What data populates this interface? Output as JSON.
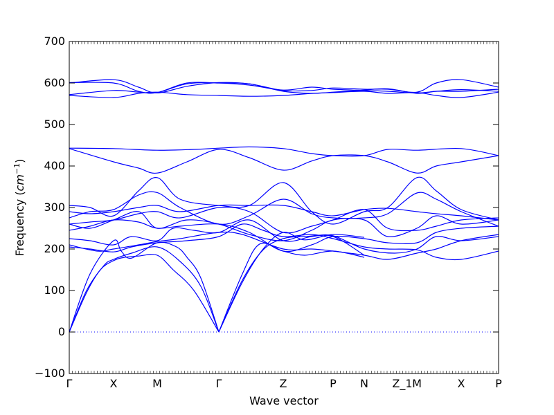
{
  "chart_data": {
    "type": "line",
    "xlabel": "Wave vector",
    "ylabel": "Frequency (cm⁻¹)",
    "ylabel_prefix": "Frequency (",
    "ylabel_unit": "cm",
    "ylabel_exp": "−1",
    "ylabel_suffix": ")",
    "ylim": [
      -100,
      700
    ],
    "yticks": [
      -100,
      0,
      100,
      200,
      300,
      400,
      500,
      600,
      700
    ],
    "zero_line": {
      "value": 0,
      "style": "dotted",
      "color": "#0000ff"
    },
    "line_color": "#0000ff",
    "grid": false,
    "high_symmetry_points": [
      {
        "label": "Γ",
        "x": 0.0
      },
      {
        "label": "X",
        "x": 0.64
      },
      {
        "label": "M",
        "x": 1.27
      },
      {
        "label": "Γ",
        "x": 2.16
      },
      {
        "label": "Z",
        "x": 3.09
      },
      {
        "label": "P",
        "x": 3.81
      },
      {
        "label": "N",
        "x": 4.26
      },
      {
        "label": "Z_1",
        "x": 4.81
      },
      {
        "label": "M",
        "x": 5.02
      },
      {
        "label": "X",
        "x": 5.66
      },
      {
        "label": "P",
        "x": 6.2
      }
    ],
    "xlim": [
      0,
      6.2
    ],
    "series": [
      {
        "values": [
          [
            0,
            0
          ],
          [
            0.25,
            95
          ],
          [
            0.45,
            150
          ],
          [
            0.64,
            172
          ],
          [
            0.8,
            180
          ],
          [
            1.0,
            183
          ],
          [
            1.27,
            185
          ],
          [
            1.5,
            150
          ],
          [
            1.8,
            100
          ],
          [
            2.16,
            0
          ]
        ]
      },
      {
        "values": [
          [
            0,
            0
          ],
          [
            0.25,
            100
          ],
          [
            0.5,
            160
          ],
          [
            0.64,
            175
          ],
          [
            0.9,
            190
          ],
          [
            1.27,
            205
          ],
          [
            1.6,
            170
          ],
          [
            1.9,
            110
          ],
          [
            2.16,
            0
          ]
        ]
      },
      {
        "values": [
          [
            0,
            0
          ],
          [
            0.3,
            140
          ],
          [
            0.64,
            220
          ],
          [
            0.75,
            195
          ],
          [
            0.9,
            178
          ],
          [
            1.27,
            215
          ],
          [
            1.55,
            205
          ],
          [
            1.7,
            180
          ],
          [
            1.9,
            130
          ],
          [
            2.16,
            0
          ]
        ]
      },
      {
        "values": [
          [
            2.16,
            0
          ],
          [
            2.5,
            120
          ],
          [
            2.8,
            200
          ],
          [
            3.09,
            240
          ],
          [
            3.4,
            222
          ],
          [
            3.81,
            235
          ],
          [
            4.26,
            228
          ]
        ]
      },
      {
        "values": [
          [
            2.16,
            0
          ],
          [
            2.5,
            125
          ],
          [
            2.8,
            198
          ],
          [
            3.09,
            225
          ],
          [
            3.4,
            230
          ],
          [
            3.81,
            230
          ],
          [
            4.26,
            185
          ]
        ]
      },
      {
        "values": [
          [
            2.16,
            0
          ],
          [
            2.5,
            140
          ],
          [
            2.75,
            212
          ],
          [
            3.09,
            195
          ],
          [
            3.4,
            185
          ],
          [
            3.81,
            195
          ],
          [
            4.26,
            180
          ]
        ]
      },
      {
        "values": [
          [
            0,
            205
          ],
          [
            0.3,
            200
          ],
          [
            0.64,
            193
          ],
          [
            0.9,
            205
          ],
          [
            1.27,
            215
          ],
          [
            1.7,
            220
          ],
          [
            2.16,
            230
          ],
          [
            2.5,
            260
          ],
          [
            2.8,
            245
          ],
          [
            3.09,
            230
          ],
          [
            3.5,
            235
          ],
          [
            3.81,
            225
          ],
          [
            4.26,
            205
          ],
          [
            4.6,
            200
          ],
          [
            5.02,
            198
          ],
          [
            5.3,
            180
          ],
          [
            5.66,
            175
          ],
          [
            6.2,
            195
          ]
        ]
      },
      {
        "values": [
          [
            0,
            210
          ],
          [
            0.4,
            195
          ],
          [
            0.64,
            200
          ],
          [
            1.0,
            210
          ],
          [
            1.27,
            218
          ],
          [
            1.6,
            225
          ],
          [
            2.16,
            240
          ],
          [
            2.5,
            235
          ],
          [
            3.09,
            200
          ],
          [
            3.5,
            200
          ],
          [
            3.81,
            195
          ],
          [
            4.26,
            185
          ],
          [
            4.6,
            175
          ],
          [
            5.02,
            190
          ],
          [
            5.3,
            200
          ],
          [
            5.66,
            220
          ],
          [
            6.2,
            235
          ]
        ]
      },
      {
        "values": [
          [
            0,
            225
          ],
          [
            0.3,
            220
          ],
          [
            0.64,
            210
          ],
          [
            0.9,
            230
          ],
          [
            1.27,
            220
          ],
          [
            1.5,
            250
          ],
          [
            1.8,
            245
          ],
          [
            2.16,
            240
          ],
          [
            2.6,
            270
          ],
          [
            3.09,
            220
          ],
          [
            3.5,
            230
          ],
          [
            3.81,
            232
          ],
          [
            4.26,
            200
          ],
          [
            4.7,
            190
          ],
          [
            5.02,
            200
          ],
          [
            5.3,
            230
          ],
          [
            5.66,
            220
          ],
          [
            6.2,
            230
          ]
        ]
      },
      {
        "values": [
          [
            0,
            245
          ],
          [
            0.3,
            255
          ],
          [
            0.64,
            270
          ],
          [
            1.0,
            265
          ],
          [
            1.27,
            250
          ],
          [
            1.6,
            255
          ],
          [
            2.16,
            260
          ],
          [
            2.6,
            240
          ],
          [
            3.09,
            195
          ],
          [
            3.5,
            210
          ],
          [
            3.81,
            230
          ],
          [
            4.26,
            225
          ],
          [
            4.6,
            215
          ],
          [
            5.02,
            215
          ],
          [
            5.3,
            240
          ],
          [
            5.66,
            250
          ],
          [
            6.2,
            255
          ]
        ]
      },
      {
        "values": [
          [
            0,
            260
          ],
          [
            0.3,
            250
          ],
          [
            0.64,
            270
          ],
          [
            1.0,
            290
          ],
          [
            1.27,
            250
          ],
          [
            1.7,
            270
          ],
          [
            2.16,
            260
          ],
          [
            2.6,
            235
          ],
          [
            3.09,
            220
          ],
          [
            3.5,
            245
          ],
          [
            3.81,
            270
          ],
          [
            4.26,
            270
          ],
          [
            4.6,
            230
          ],
          [
            5.02,
            250
          ],
          [
            5.3,
            280
          ],
          [
            5.66,
            260
          ],
          [
            6.2,
            270
          ]
        ]
      },
      {
        "values": [
          [
            0,
            260
          ],
          [
            0.3,
            265
          ],
          [
            0.64,
            270
          ],
          [
            1.0,
            285
          ],
          [
            1.27,
            290
          ],
          [
            1.6,
            275
          ],
          [
            2.16,
            300
          ],
          [
            2.6,
            290
          ],
          [
            3.09,
            240
          ],
          [
            3.5,
            255
          ],
          [
            3.81,
            270
          ],
          [
            4.26,
            295
          ],
          [
            4.6,
            250
          ],
          [
            5.02,
            245
          ],
          [
            5.3,
            255
          ],
          [
            5.66,
            270
          ],
          [
            6.2,
            275
          ]
        ]
      },
      {
        "values": [
          [
            0,
            275
          ],
          [
            0.3,
            290
          ],
          [
            0.64,
            295
          ],
          [
            1.0,
            330
          ],
          [
            1.27,
            336
          ],
          [
            1.6,
            300
          ],
          [
            2.16,
            260
          ],
          [
            2.6,
            280
          ],
          [
            3.09,
            320
          ],
          [
            3.5,
            285
          ],
          [
            3.81,
            275
          ],
          [
            4.26,
            275
          ],
          [
            4.6,
            285
          ],
          [
            5.02,
            335
          ],
          [
            5.3,
            320
          ],
          [
            5.66,
            290
          ],
          [
            6.2,
            255
          ]
        ]
      },
      {
        "values": [
          [
            0,
            305
          ],
          [
            0.3,
            300
          ],
          [
            0.64,
            280
          ],
          [
            1.0,
            340
          ],
          [
            1.27,
            372
          ],
          [
            1.6,
            320
          ],
          [
            2.16,
            305
          ],
          [
            2.6,
            305
          ],
          [
            3.09,
            360
          ],
          [
            3.5,
            290
          ],
          [
            3.81,
            260
          ],
          [
            4.26,
            290
          ],
          [
            4.6,
            300
          ],
          [
            5.02,
            372
          ],
          [
            5.3,
            340
          ],
          [
            5.66,
            295
          ],
          [
            6.2,
            270
          ]
        ]
      },
      {
        "values": [
          [
            0,
            290
          ],
          [
            0.3,
            285
          ],
          [
            0.64,
            290
          ],
          [
            1.0,
            300
          ],
          [
            1.27,
            305
          ],
          [
            1.6,
            290
          ],
          [
            2.16,
            305
          ],
          [
            2.6,
            305
          ],
          [
            3.09,
            305
          ],
          [
            3.5,
            290
          ],
          [
            3.81,
            280
          ],
          [
            4.26,
            295
          ],
          [
            4.6,
            298
          ],
          [
            5.02,
            290
          ],
          [
            5.3,
            285
          ],
          [
            5.66,
            280
          ],
          [
            6.2,
            270
          ]
        ]
      },
      {
        "values": [
          [
            0,
            442
          ],
          [
            0.64,
            410
          ],
          [
            1.0,
            395
          ],
          [
            1.27,
            383
          ],
          [
            1.7,
            410
          ],
          [
            2.16,
            440
          ],
          [
            2.6,
            420
          ],
          [
            3.09,
            390
          ],
          [
            3.5,
            412
          ],
          [
            3.81,
            425
          ],
          [
            4.26,
            425
          ],
          [
            4.6,
            410
          ],
          [
            5.02,
            383
          ],
          [
            5.3,
            400
          ],
          [
            5.66,
            410
          ],
          [
            6.2,
            425
          ]
        ]
      },
      {
        "values": [
          [
            0,
            443
          ],
          [
            0.64,
            442
          ],
          [
            1.27,
            438
          ],
          [
            1.8,
            440
          ],
          [
            2.16,
            443
          ],
          [
            2.6,
            446
          ],
          [
            3.09,
            442
          ],
          [
            3.5,
            430
          ],
          [
            3.81,
            425
          ],
          [
            4.26,
            425
          ],
          [
            4.6,
            440
          ],
          [
            5.02,
            438
          ],
          [
            5.66,
            442
          ],
          [
            6.2,
            425
          ]
        ]
      },
      {
        "values": [
          [
            0,
            570
          ],
          [
            0.64,
            565
          ],
          [
            1.0,
            575
          ],
          [
            1.27,
            578
          ],
          [
            1.7,
            572
          ],
          [
            2.16,
            570
          ],
          [
            2.6,
            568
          ],
          [
            3.09,
            570
          ],
          [
            3.5,
            575
          ],
          [
            3.81,
            577
          ],
          [
            4.26,
            580
          ],
          [
            4.6,
            575
          ],
          [
            5.02,
            577
          ],
          [
            5.3,
            570
          ],
          [
            5.66,
            565
          ],
          [
            6.2,
            578
          ]
        ]
      },
      {
        "values": [
          [
            0,
            572
          ],
          [
            0.64,
            582
          ],
          [
            1.0,
            578
          ],
          [
            1.27,
            577
          ],
          [
            1.7,
            598
          ],
          [
            2.16,
            600
          ],
          [
            2.6,
            595
          ],
          [
            3.09,
            583
          ],
          [
            3.5,
            590
          ],
          [
            3.81,
            585
          ],
          [
            4.26,
            582
          ],
          [
            4.6,
            580
          ],
          [
            5.02,
            576
          ],
          [
            5.3,
            580
          ],
          [
            5.66,
            584
          ],
          [
            6.2,
            580
          ]
        ]
      },
      {
        "values": [
          [
            0,
            600
          ],
          [
            0.64,
            608
          ],
          [
            1.0,
            590
          ],
          [
            1.27,
            576
          ],
          [
            1.7,
            592
          ],
          [
            2.16,
            601
          ],
          [
            2.6,
            598
          ],
          [
            3.09,
            582
          ],
          [
            3.5,
            582
          ],
          [
            3.81,
            588
          ],
          [
            4.26,
            585
          ],
          [
            4.6,
            585
          ],
          [
            5.02,
            578
          ],
          [
            5.3,
            600
          ],
          [
            5.66,
            608
          ],
          [
            6.2,
            590
          ]
        ]
      },
      {
        "values": [
          [
            0,
            601
          ],
          [
            0.64,
            600
          ],
          [
            1.0,
            580
          ],
          [
            1.27,
            577
          ],
          [
            1.7,
            600
          ],
          [
            2.16,
            600
          ],
          [
            2.6,
            598
          ],
          [
            3.09,
            580
          ],
          [
            3.5,
            575
          ],
          [
            3.81,
            578
          ],
          [
            4.26,
            583
          ],
          [
            4.6,
            586
          ],
          [
            5.02,
            575
          ],
          [
            5.3,
            580
          ],
          [
            5.66,
            580
          ],
          [
            6.2,
            585
          ]
        ]
      }
    ]
  }
}
